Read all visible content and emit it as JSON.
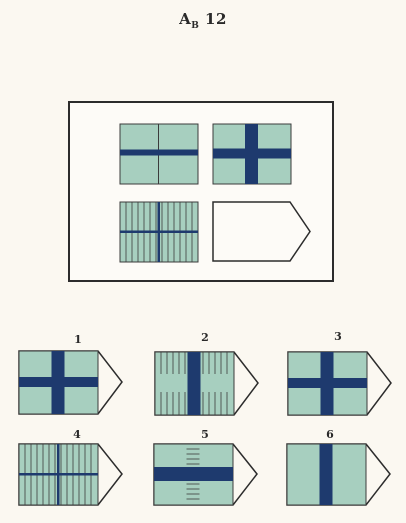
{
  "title": "A",
  "title_sub": "B",
  "title_num": "12",
  "colors": {
    "panel_fill": "#a7cfbf",
    "band": "#1e3a6e",
    "line": "#3b3b3b",
    "blank_fill": "#fdfbf7"
  },
  "problem": {
    "matrix": [
      "horizontal-band",
      "cross",
      "striped-cross",
      "blank"
    ]
  },
  "options": [
    {
      "label": "1",
      "pattern": "cross"
    },
    {
      "label": "2",
      "pattern": "vertical-band-striped"
    },
    {
      "label": "3",
      "pattern": "cross"
    },
    {
      "label": "4",
      "pattern": "striped-cross"
    },
    {
      "label": "5",
      "pattern": "horizontal-band-striped"
    },
    {
      "label": "6",
      "pattern": "vertical-band"
    }
  ]
}
